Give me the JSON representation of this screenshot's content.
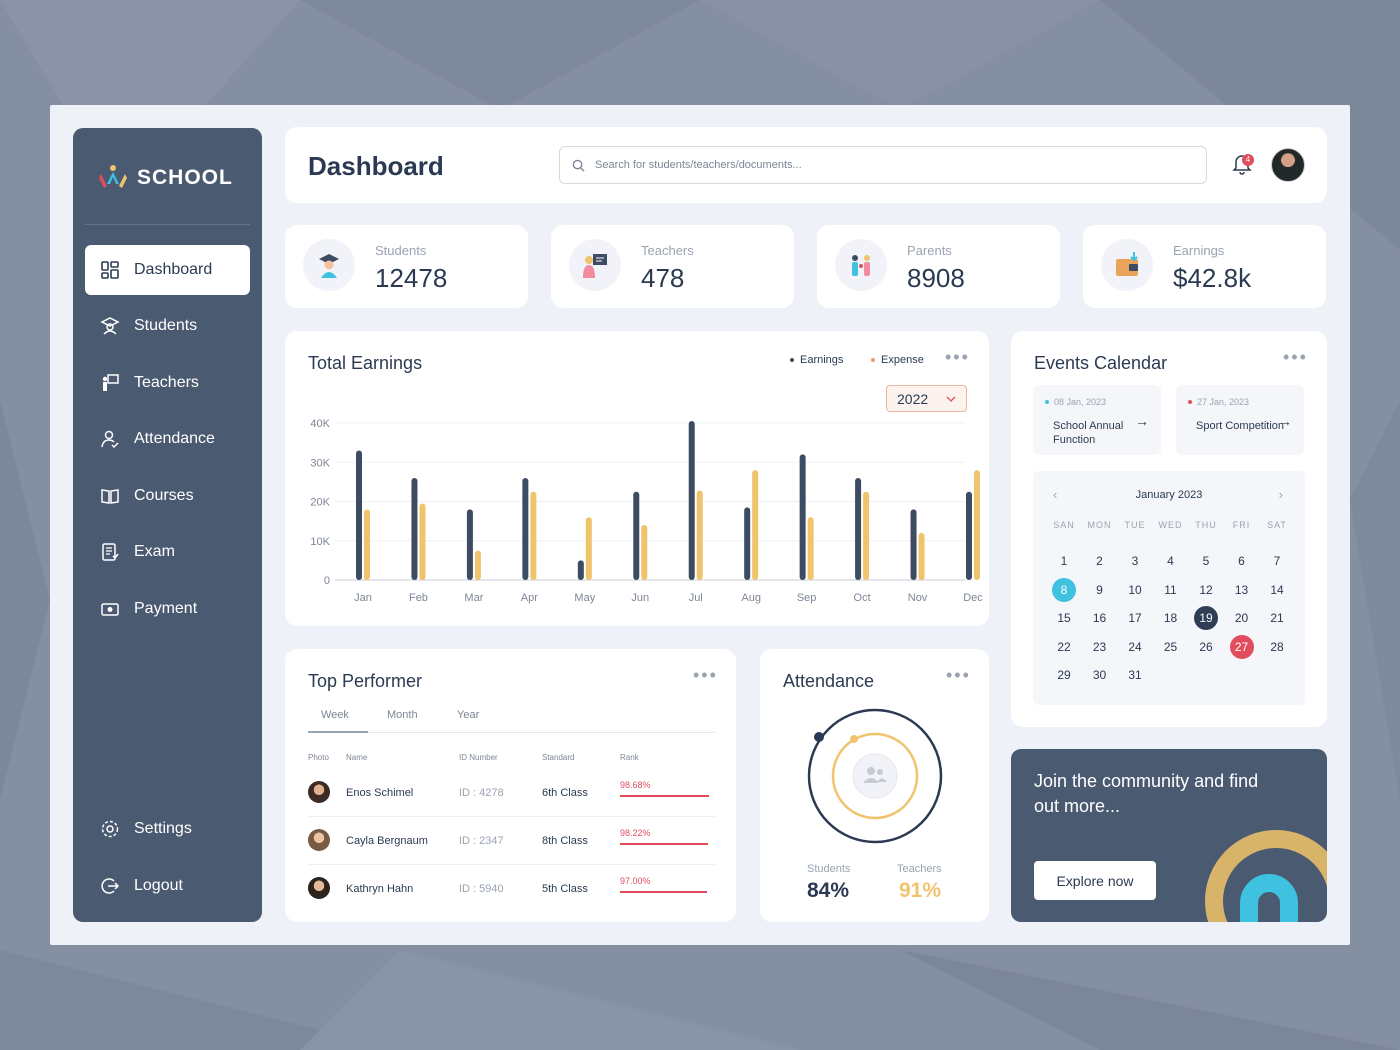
{
  "app": {
    "name": "SCHOOL"
  },
  "nav": {
    "items": [
      {
        "label": "Dashboard",
        "icon": "dashboard-icon",
        "active": true
      },
      {
        "label": "Students",
        "icon": "student-icon"
      },
      {
        "label": "Teachers",
        "icon": "teacher-icon"
      },
      {
        "label": "Attendance",
        "icon": "attendance-icon"
      },
      {
        "label": "Courses",
        "icon": "book-icon"
      },
      {
        "label": "Exam",
        "icon": "exam-icon"
      },
      {
        "label": "Payment",
        "icon": "payment-icon"
      }
    ],
    "settings": "Settings",
    "logout": "Logout"
  },
  "header": {
    "title": "Dashboard",
    "search_placeholder": "Search for students/teachers/documents...",
    "notification_count": "4"
  },
  "stats": [
    {
      "label": "Students",
      "value": "12478",
      "icon": "graduate-icon"
    },
    {
      "label": "Teachers",
      "value": "478",
      "icon": "teacher-board-icon"
    },
    {
      "label": "Parents",
      "value": "8908",
      "icon": "family-icon"
    },
    {
      "label": "Earnings",
      "value": "$42.8k",
      "icon": "wallet-icon"
    }
  ],
  "earnings": {
    "title": "Total Earnings",
    "legend_earnings": "Earnings",
    "legend_expense": "Expense",
    "year": "2022"
  },
  "colors": {
    "earnings": "#3d4b63",
    "expense": "#f0c36d",
    "accent": "#3fc1e0",
    "danger": "#e24d5e"
  },
  "chart_data": {
    "type": "bar",
    "categories": [
      "Jan",
      "Feb",
      "Mar",
      "Apr",
      "May",
      "Jun",
      "Jul",
      "Aug",
      "Sep",
      "Oct",
      "Nov",
      "Dec"
    ],
    "series": [
      {
        "name": "Earnings",
        "values": [
          33000,
          26000,
          18000,
          26000,
          5000,
          22500,
          40500,
          18500,
          32000,
          26000,
          18000,
          22500
        ]
      },
      {
        "name": "Expense",
        "values": [
          18000,
          19500,
          7500,
          22500,
          16000,
          14000,
          22800,
          28000,
          16000,
          22500,
          12000,
          28000
        ]
      }
    ],
    "ytick_labels": [
      "0",
      "10K",
      "20K",
      "30K",
      "40K"
    ],
    "ylim": [
      0,
      40000
    ],
    "grid": true,
    "legend": "top-right"
  },
  "events": {
    "title": "Events Calendar",
    "items": [
      {
        "date": "08 Jan, 2023",
        "name": "School Annual Function",
        "color": "#3fc1e0"
      },
      {
        "date": "27 Jan, 2023",
        "name": "Sport Competition",
        "color": "#e24d5e"
      }
    ],
    "calendar": {
      "month": "January 2023",
      "weekdays": [
        "SAN",
        "MON",
        "TUE",
        "WED",
        "THU",
        "FRI",
        "SAT"
      ],
      "days": [
        "1",
        "2",
        "3",
        "4",
        "5",
        "6",
        "7",
        "8",
        "9",
        "10",
        "11",
        "12",
        "13",
        "14",
        "15",
        "16",
        "17",
        "18",
        "19",
        "20",
        "21",
        "22",
        "23",
        "24",
        "25",
        "26",
        "27",
        "28",
        "29",
        "30",
        "31"
      ]
    }
  },
  "performer": {
    "title": "Top Performer",
    "tabs": [
      "Week",
      "Month",
      "Year"
    ],
    "columns": [
      "Photo",
      "Name",
      "ID Number",
      "Standard",
      "Rank"
    ],
    "rows": [
      {
        "name": "Enos Schimel",
        "id": "ID : 4278",
        "standard": "6th Class",
        "rank": "98.68%",
        "rank_value": 98.68
      },
      {
        "name": "Cayla Bergnaum",
        "id": "ID : 2347",
        "standard": "8th Class",
        "rank": "98.22%",
        "rank_value": 98.22
      },
      {
        "name": "Kathryn Hahn",
        "id": "ID : 5940",
        "standard": "5th Class",
        "rank": "97.00%",
        "rank_value": 97.0
      }
    ]
  },
  "attendance": {
    "title": "Attendance",
    "students_label": "Students",
    "students_value": "84%",
    "teachers_label": "Teachers",
    "teachers_value": "91%"
  },
  "community": {
    "text": "Join the community and find out more...",
    "button": "Explore now"
  }
}
